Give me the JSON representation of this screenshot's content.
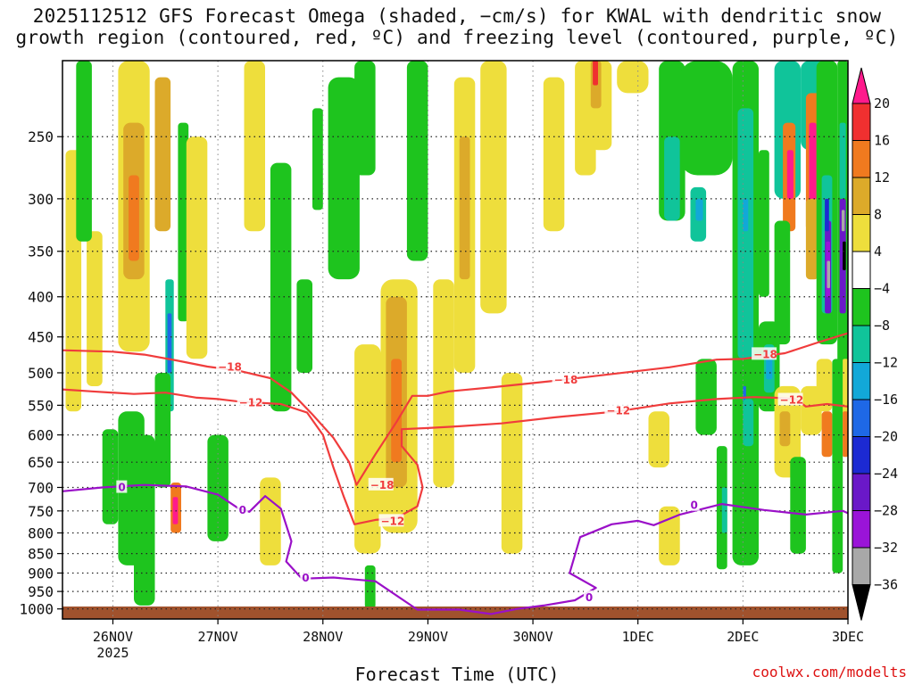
{
  "chart_data": {
    "type": "heatmap",
    "title_line1": "2025112512 GFS Forecast Omega (shaded, −cm/s) for KWAL with dendritic snow",
    "title_line2": "growth region (contoured, red, ºC) and freezing level (contoured, purple, ºC)",
    "xlabel": "Forecast Time (UTC)",
    "credit": "coolwx.com/modelts",
    "x_ticks": [
      "26NOV",
      "27NOV",
      "28NOV",
      "29NOV",
      "30NOV",
      "1DEC",
      "2DEC",
      "3DEC"
    ],
    "x_year_label": "2025",
    "x_range_days": [
      -0.48,
      7.0
    ],
    "y_ticks": [
      "250",
      "300",
      "350",
      "400",
      "450",
      "500",
      "550",
      "600",
      "650",
      "700",
      "750",
      "800",
      "850",
      "900",
      "950",
      "1000"
    ],
    "y_range_hpa": [
      200,
      1030
    ],
    "colorbar": {
      "labels": [
        "20",
        "16",
        "12",
        "8",
        "4",
        "−4",
        "−8",
        "−12",
        "−16",
        "−20",
        "−24",
        "−28",
        "−32",
        "−36"
      ],
      "colors": [
        "#ff1a8c",
        "#f03030",
        "#f07a1f",
        "#dcaa2a",
        "#eede3c",
        "#ffffff",
        "#1ec41e",
        "#10c49a",
        "#12a8d8",
        "#1e68e6",
        "#1c2ad2",
        "#6a18c8",
        "#9a14d8",
        "#a8a8a8",
        "#000000"
      ]
    },
    "contours": [
      {
        "name": "dgz-minus-18",
        "color": "#f03c3c",
        "label": "−18",
        "points": [
          [
            -0.48,
            468
          ],
          [
            0,
            470
          ],
          [
            0.3,
            474
          ],
          [
            0.6,
            482
          ],
          [
            0.9,
            491
          ],
          [
            1.2,
            497
          ],
          [
            1.5,
            508
          ],
          [
            1.7,
            530
          ],
          [
            1.9,
            565
          ],
          [
            2.1,
            605
          ],
          [
            2.25,
            650
          ],
          [
            2.32,
            695
          ],
          [
            2.5,
            635
          ],
          [
            2.7,
            578
          ],
          [
            2.85,
            535
          ],
          [
            3.0,
            535
          ],
          [
            3.2,
            528
          ],
          [
            3.6,
            522
          ],
          [
            4.2,
            512
          ],
          [
            4.8,
            501
          ],
          [
            5.3,
            492
          ],
          [
            5.75,
            481
          ],
          [
            6.0,
            480
          ],
          [
            6.4,
            472
          ],
          [
            6.7,
            458
          ],
          [
            7.0,
            445
          ]
        ],
        "labels_at": [
          [
            1.0,
            493
          ],
          [
            2.45,
            697
          ],
          [
            4.2,
            512
          ],
          [
            6.1,
            475
          ]
        ]
      },
      {
        "name": "dgz-minus-12",
        "color": "#f03c3c",
        "label": "−12",
        "points": [
          [
            -0.48,
            525
          ],
          [
            -0.2,
            528
          ],
          [
            0.2,
            532
          ],
          [
            0.5,
            530
          ],
          [
            0.8,
            538
          ],
          [
            1.0,
            540
          ],
          [
            1.2,
            544
          ],
          [
            1.6,
            548
          ],
          [
            1.85,
            562
          ],
          [
            2.0,
            600
          ],
          [
            2.1,
            660
          ],
          [
            2.2,
            720
          ],
          [
            2.3,
            780
          ],
          [
            2.5,
            770
          ],
          [
            2.7,
            766
          ],
          [
            2.9,
            740
          ],
          [
            2.95,
            700
          ],
          [
            2.9,
            655
          ],
          [
            2.75,
            620
          ],
          [
            2.75,
            590
          ],
          [
            3.0,
            588
          ],
          [
            3.3,
            585
          ],
          [
            3.7,
            580
          ],
          [
            4.2,
            570
          ],
          [
            4.8,
            560
          ],
          [
            5.3,
            547
          ],
          [
            5.75,
            540
          ],
          [
            6.1,
            537
          ],
          [
            6.3,
            538
          ],
          [
            6.5,
            540
          ],
          [
            6.6,
            552
          ],
          [
            6.8,
            548
          ],
          [
            7.0,
            552
          ]
        ],
        "labels_at": [
          [
            1.2,
            547
          ],
          [
            2.55,
            775
          ],
          [
            4.7,
            560
          ],
          [
            6.35,
            543
          ]
        ]
      },
      {
        "name": "freezing-level",
        "color": "#9a10c8",
        "label": "0",
        "points": [
          [
            -0.48,
            708
          ],
          [
            -0.1,
            700
          ],
          [
            0.3,
            695
          ],
          [
            0.7,
            698
          ],
          [
            1.0,
            715
          ],
          [
            1.2,
            745
          ],
          [
            1.3,
            752
          ],
          [
            1.45,
            718
          ],
          [
            1.6,
            745
          ],
          [
            1.7,
            820
          ],
          [
            1.65,
            870
          ],
          [
            1.8,
            915
          ],
          [
            2.1,
            912
          ],
          [
            2.5,
            922
          ],
          [
            2.9,
            1002
          ],
          [
            3.3,
            1002
          ],
          [
            3.6,
            1015
          ],
          [
            3.85,
            1000
          ],
          [
            4.1,
            990
          ],
          [
            4.4,
            975
          ],
          [
            4.6,
            940
          ],
          [
            4.35,
            900
          ],
          [
            4.45,
            810
          ],
          [
            4.75,
            780
          ],
          [
            5.0,
            772
          ],
          [
            5.15,
            782
          ],
          [
            5.4,
            758
          ],
          [
            5.8,
            735
          ],
          [
            6.2,
            748
          ],
          [
            6.6,
            758
          ],
          [
            6.95,
            750
          ],
          [
            7.0,
            755
          ]
        ],
        "labels_at": [
          [
            0.05,
            702
          ],
          [
            1.2,
            750
          ],
          [
            1.8,
            915
          ],
          [
            4.5,
            970
          ],
          [
            5.5,
            740
          ]
        ]
      }
    ]
  }
}
